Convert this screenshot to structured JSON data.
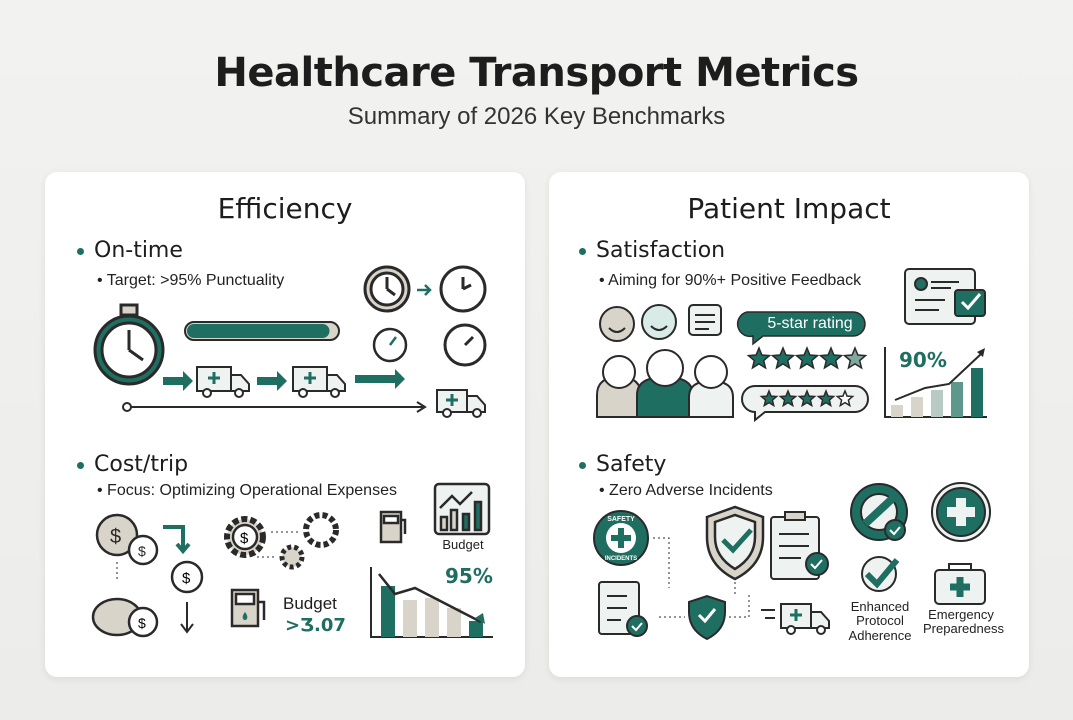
{
  "header": {
    "title": "Healthcare Transport Metrics",
    "subtitle": "Summary of 2026 Key Benchmarks"
  },
  "colors": {
    "accent": "#1f6e62",
    "neutral": "#d9d4c9",
    "outline": "#2a2a2a"
  },
  "efficiency": {
    "title": "Efficiency",
    "ontime": {
      "heading": "On-time",
      "detail": "• Target: >95% Punctuality",
      "progress": 0.95
    },
    "cost": {
      "heading": "Cost/trip",
      "detail": "• Focus: Optimizing Operational Expenses",
      "budget_label": "Budget",
      "budget_label2": "Budget",
      "budget_value": ">Ʒ.07",
      "chart_pct": "95%"
    }
  },
  "patient": {
    "title": "Patient Impact",
    "satisfaction": {
      "heading": "Satisfaction",
      "detail": "• Aiming for 90%+ Positive Feedback",
      "rating_badge": "5-star rating",
      "chart_pct": "90%"
    },
    "safety": {
      "heading": "Safety",
      "detail": "• Zero Adverse Incidents",
      "badge_text_top": "SAFETY",
      "badge_text_bottom": "INCIDENTS",
      "protocol_label": "Enhanced Protocol Adherence",
      "emergency_label": "Emergency Preparedness"
    }
  }
}
